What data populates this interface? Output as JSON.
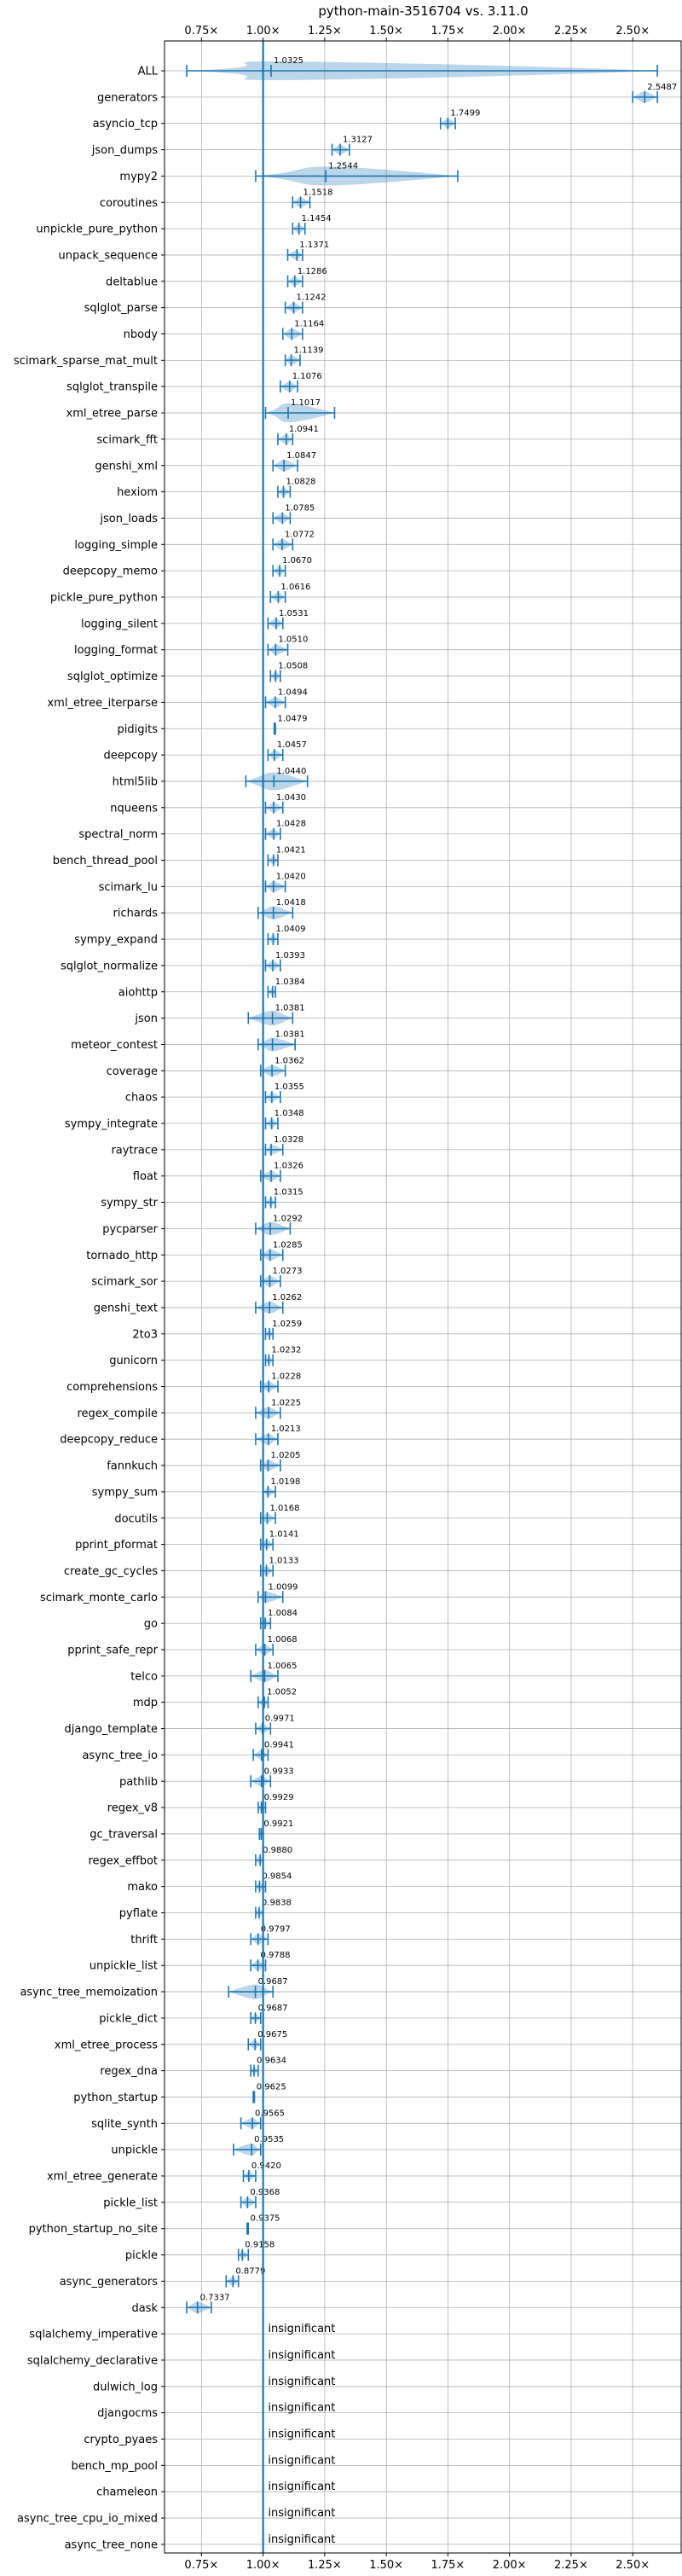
{
  "chart_data": {
    "type": "violin",
    "title": "python-main-3516704 vs. 3.11.0",
    "xlim": [
      0.6,
      2.7
    ],
    "xticks": [
      0.75,
      1.0,
      1.25,
      1.5,
      1.75,
      2.0,
      2.25,
      2.5
    ],
    "xtick_labels": [
      "0.75×",
      "1.00×",
      "1.25×",
      "1.50×",
      "1.75×",
      "2.00×",
      "2.25×",
      "2.50×"
    ],
    "reference_line": 1.0,
    "grid": true,
    "color": "#1f77b4",
    "rows": [
      {
        "name": "ALL",
        "value": 1.0325,
        "label": "1.0325",
        "lo": 0.69,
        "hi": 2.6
      },
      {
        "name": "generators",
        "value": 2.5487,
        "label": "2.5487",
        "lo": 2.5,
        "hi": 2.6
      },
      {
        "name": "asyncio_tcp",
        "value": 1.7499,
        "label": "1.7499",
        "lo": 1.72,
        "hi": 1.78
      },
      {
        "name": "json_dumps",
        "value": 1.3127,
        "label": "1.3127",
        "lo": 1.28,
        "hi": 1.35
      },
      {
        "name": "mypy2",
        "value": 1.2544,
        "label": "1.2544",
        "lo": 0.97,
        "hi": 1.79
      },
      {
        "name": "coroutines",
        "value": 1.1518,
        "label": "1.1518",
        "lo": 1.12,
        "hi": 1.19
      },
      {
        "name": "unpickle_pure_python",
        "value": 1.1454,
        "label": "1.1454",
        "lo": 1.12,
        "hi": 1.17
      },
      {
        "name": "unpack_sequence",
        "value": 1.1371,
        "label": "1.1371",
        "lo": 1.1,
        "hi": 1.16
      },
      {
        "name": "deltablue",
        "value": 1.1286,
        "label": "1.1286",
        "lo": 1.1,
        "hi": 1.16
      },
      {
        "name": "sqlglot_parse",
        "value": 1.1242,
        "label": "1.1242",
        "lo": 1.09,
        "hi": 1.16
      },
      {
        "name": "nbody",
        "value": 1.1164,
        "label": "1.1164",
        "lo": 1.08,
        "hi": 1.16
      },
      {
        "name": "scimark_sparse_mat_mult",
        "value": 1.1139,
        "label": "1.1139",
        "lo": 1.09,
        "hi": 1.15
      },
      {
        "name": "sqlglot_transpile",
        "value": 1.1076,
        "label": "1.1076",
        "lo": 1.07,
        "hi": 1.14
      },
      {
        "name": "xml_etree_parse",
        "value": 1.1017,
        "label": "1.1017",
        "lo": 1.01,
        "hi": 1.29
      },
      {
        "name": "scimark_fft",
        "value": 1.0941,
        "label": "1.0941",
        "lo": 1.06,
        "hi": 1.12
      },
      {
        "name": "genshi_xml",
        "value": 1.0847,
        "label": "1.0847",
        "lo": 1.04,
        "hi": 1.14
      },
      {
        "name": "hexiom",
        "value": 1.0828,
        "label": "1.0828",
        "lo": 1.06,
        "hi": 1.11
      },
      {
        "name": "json_loads",
        "value": 1.0785,
        "label": "1.0785",
        "lo": 1.04,
        "hi": 1.11
      },
      {
        "name": "logging_simple",
        "value": 1.0772,
        "label": "1.0772",
        "lo": 1.04,
        "hi": 1.12
      },
      {
        "name": "deepcopy_memo",
        "value": 1.067,
        "label": "1.0670",
        "lo": 1.04,
        "hi": 1.09
      },
      {
        "name": "pickle_pure_python",
        "value": 1.0616,
        "label": "1.0616",
        "lo": 1.03,
        "hi": 1.09
      },
      {
        "name": "logging_silent",
        "value": 1.0531,
        "label": "1.0531",
        "lo": 1.02,
        "hi": 1.08
      },
      {
        "name": "logging_format",
        "value": 1.051,
        "label": "1.0510",
        "lo": 1.02,
        "hi": 1.1
      },
      {
        "name": "sqlglot_optimize",
        "value": 1.0508,
        "label": "1.0508",
        "lo": 1.03,
        "hi": 1.07
      },
      {
        "name": "xml_etree_iterparse",
        "value": 1.0494,
        "label": "1.0494",
        "lo": 1.01,
        "hi": 1.09
      },
      {
        "name": "pidigits",
        "value": 1.0479,
        "label": "1.0479",
        "lo": 1.045,
        "hi": 1.05
      },
      {
        "name": "deepcopy",
        "value": 1.0457,
        "label": "1.0457",
        "lo": 1.02,
        "hi": 1.08
      },
      {
        "name": "html5lib",
        "value": 1.044,
        "label": "1.0440",
        "lo": 0.93,
        "hi": 1.18
      },
      {
        "name": "nqueens",
        "value": 1.043,
        "label": "1.0430",
        "lo": 1.01,
        "hi": 1.08
      },
      {
        "name": "spectral_norm",
        "value": 1.0428,
        "label": "1.0428",
        "lo": 1.01,
        "hi": 1.07
      },
      {
        "name": "bench_thread_pool",
        "value": 1.0421,
        "label": "1.0421",
        "lo": 1.02,
        "hi": 1.06
      },
      {
        "name": "scimark_lu",
        "value": 1.042,
        "label": "1.0420",
        "lo": 1.01,
        "hi": 1.09
      },
      {
        "name": "richards",
        "value": 1.0418,
        "label": "1.0418",
        "lo": 0.98,
        "hi": 1.12
      },
      {
        "name": "sympy_expand",
        "value": 1.0409,
        "label": "1.0409",
        "lo": 1.02,
        "hi": 1.06
      },
      {
        "name": "sqlglot_normalize",
        "value": 1.0393,
        "label": "1.0393",
        "lo": 1.01,
        "hi": 1.07
      },
      {
        "name": "aiohttp",
        "value": 1.0384,
        "label": "1.0384",
        "lo": 1.02,
        "hi": 1.05
      },
      {
        "name": "json",
        "value": 1.0381,
        "label": "1.0381",
        "lo": 0.94,
        "hi": 1.12
      },
      {
        "name": "meteor_contest",
        "value": 1.0381,
        "label": "1.0381",
        "lo": 0.98,
        "hi": 1.13
      },
      {
        "name": "coverage",
        "value": 1.0362,
        "label": "1.0362",
        "lo": 0.99,
        "hi": 1.09
      },
      {
        "name": "chaos",
        "value": 1.0355,
        "label": "1.0355",
        "lo": 1.01,
        "hi": 1.07
      },
      {
        "name": "sympy_integrate",
        "value": 1.0348,
        "label": "1.0348",
        "lo": 1.01,
        "hi": 1.06
      },
      {
        "name": "raytrace",
        "value": 1.0328,
        "label": "1.0328",
        "lo": 1.01,
        "hi": 1.08
      },
      {
        "name": "float",
        "value": 1.0326,
        "label": "1.0326",
        "lo": 0.99,
        "hi": 1.07
      },
      {
        "name": "sympy_str",
        "value": 1.0315,
        "label": "1.0315",
        "lo": 1.01,
        "hi": 1.05
      },
      {
        "name": "pycparser",
        "value": 1.0292,
        "label": "1.0292",
        "lo": 0.97,
        "hi": 1.11
      },
      {
        "name": "tornado_http",
        "value": 1.0285,
        "label": "1.0285",
        "lo": 0.99,
        "hi": 1.08
      },
      {
        "name": "scimark_sor",
        "value": 1.0273,
        "label": "1.0273",
        "lo": 0.99,
        "hi": 1.07
      },
      {
        "name": "genshi_text",
        "value": 1.0262,
        "label": "1.0262",
        "lo": 0.97,
        "hi": 1.08
      },
      {
        "name": "2to3",
        "value": 1.0259,
        "label": "1.0259",
        "lo": 1.01,
        "hi": 1.04
      },
      {
        "name": "gunicorn",
        "value": 1.0232,
        "label": "1.0232",
        "lo": 1.01,
        "hi": 1.04
      },
      {
        "name": "comprehensions",
        "value": 1.0228,
        "label": "1.0228",
        "lo": 0.99,
        "hi": 1.06
      },
      {
        "name": "regex_compile",
        "value": 1.0225,
        "label": "1.0225",
        "lo": 0.97,
        "hi": 1.07
      },
      {
        "name": "deepcopy_reduce",
        "value": 1.0213,
        "label": "1.0213",
        "lo": 0.97,
        "hi": 1.06
      },
      {
        "name": "fannkuch",
        "value": 1.0205,
        "label": "1.0205",
        "lo": 0.99,
        "hi": 1.07
      },
      {
        "name": "sympy_sum",
        "value": 1.0198,
        "label": "1.0198",
        "lo": 1.0,
        "hi": 1.05
      },
      {
        "name": "docutils",
        "value": 1.0168,
        "label": "1.0168",
        "lo": 0.99,
        "hi": 1.05
      },
      {
        "name": "pprint_pformat",
        "value": 1.0141,
        "label": "1.0141",
        "lo": 0.99,
        "hi": 1.04
      },
      {
        "name": "create_gc_cycles",
        "value": 1.0133,
        "label": "1.0133",
        "lo": 0.99,
        "hi": 1.04
      },
      {
        "name": "scimark_monte_carlo",
        "value": 1.0099,
        "label": "1.0099",
        "lo": 0.98,
        "hi": 1.08
      },
      {
        "name": "go",
        "value": 1.0084,
        "label": "1.0084",
        "lo": 0.99,
        "hi": 1.03
      },
      {
        "name": "pprint_safe_repr",
        "value": 1.0068,
        "label": "1.0068",
        "lo": 0.97,
        "hi": 1.04
      },
      {
        "name": "telco",
        "value": 1.0065,
        "label": "1.0065",
        "lo": 0.95,
        "hi": 1.06
      },
      {
        "name": "mdp",
        "value": 1.0052,
        "label": "1.0052",
        "lo": 0.98,
        "hi": 1.02
      },
      {
        "name": "django_template",
        "value": 0.9971,
        "label": "0.9971",
        "lo": 0.97,
        "hi": 1.03
      },
      {
        "name": "async_tree_io",
        "value": 0.9941,
        "label": "0.9941",
        "lo": 0.96,
        "hi": 1.02
      },
      {
        "name": "pathlib",
        "value": 0.9933,
        "label": "0.9933",
        "lo": 0.95,
        "hi": 1.03
      },
      {
        "name": "regex_v8",
        "value": 0.9929,
        "label": "0.9929",
        "lo": 0.98,
        "hi": 1.01
      },
      {
        "name": "gc_traversal",
        "value": 0.9921,
        "label": "0.9921",
        "lo": 0.985,
        "hi": 1.0
      },
      {
        "name": "regex_effbot",
        "value": 0.988,
        "label": "0.9880",
        "lo": 0.97,
        "hi": 1.0
      },
      {
        "name": "mako",
        "value": 0.9854,
        "label": "0.9854",
        "lo": 0.97,
        "hi": 1.01
      },
      {
        "name": "pyflate",
        "value": 0.9838,
        "label": "0.9838",
        "lo": 0.97,
        "hi": 1.0
      },
      {
        "name": "thrift",
        "value": 0.9797,
        "label": "0.9797",
        "lo": 0.95,
        "hi": 1.02
      },
      {
        "name": "unpickle_list",
        "value": 0.9788,
        "label": "0.9788",
        "lo": 0.95,
        "hi": 1.01
      },
      {
        "name": "async_tree_memoization",
        "value": 0.9687,
        "label": "0.9687",
        "lo": 0.86,
        "hi": 1.04
      },
      {
        "name": "pickle_dict",
        "value": 0.9687,
        "label": "0.9687",
        "lo": 0.95,
        "hi": 0.99
      },
      {
        "name": "xml_etree_process",
        "value": 0.9675,
        "label": "0.9675",
        "lo": 0.94,
        "hi": 0.99
      },
      {
        "name": "regex_dna",
        "value": 0.9634,
        "label": "0.9634",
        "lo": 0.95,
        "hi": 0.98
      },
      {
        "name": "python_startup",
        "value": 0.9625,
        "label": "0.9625",
        "lo": 0.96,
        "hi": 0.965
      },
      {
        "name": "sqlite_synth",
        "value": 0.9565,
        "label": "0.9565",
        "lo": 0.91,
        "hi": 0.99
      },
      {
        "name": "unpickle",
        "value": 0.9535,
        "label": "0.9535",
        "lo": 0.88,
        "hi": 0.99
      },
      {
        "name": "xml_etree_generate",
        "value": 0.942,
        "label": "0.9420",
        "lo": 0.92,
        "hi": 0.97
      },
      {
        "name": "pickle_list",
        "value": 0.9368,
        "label": "0.9368",
        "lo": 0.91,
        "hi": 0.97
      },
      {
        "name": "python_startup_no_site",
        "value": 0.9375,
        "label": "0.9375",
        "lo": 0.935,
        "hi": 0.94
      },
      {
        "name": "pickle",
        "value": 0.9158,
        "label": "0.9158",
        "lo": 0.9,
        "hi": 0.94
      },
      {
        "name": "async_generators",
        "value": 0.8779,
        "label": "0.8779",
        "lo": 0.85,
        "hi": 0.9
      },
      {
        "name": "dask",
        "value": 0.7337,
        "label": "0.7337",
        "lo": 0.69,
        "hi": 0.79
      },
      {
        "name": "sqlalchemy_imperative",
        "insignificant": true
      },
      {
        "name": "sqlalchemy_declarative",
        "insignificant": true
      },
      {
        "name": "dulwich_log",
        "insignificant": true
      },
      {
        "name": "djangocms",
        "insignificant": true
      },
      {
        "name": "crypto_pyaes",
        "insignificant": true
      },
      {
        "name": "bench_mp_pool",
        "insignificant": true
      },
      {
        "name": "chameleon",
        "insignificant": true
      },
      {
        "name": "async_tree_cpu_io_mixed",
        "insignificant": true
      },
      {
        "name": "async_tree_none",
        "insignificant": true
      }
    ],
    "insignificant_label": "insignificant"
  }
}
